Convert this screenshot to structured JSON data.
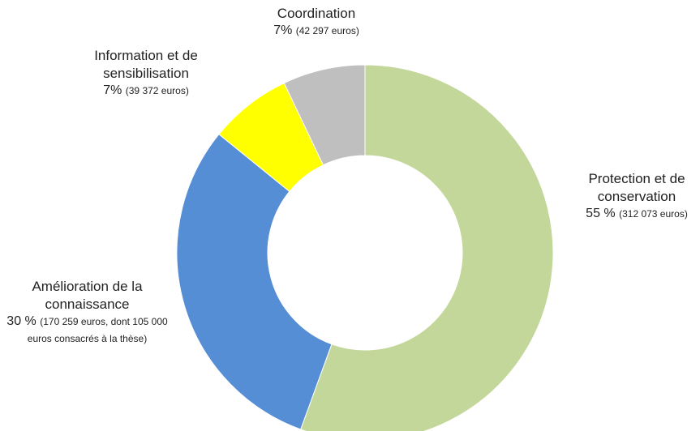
{
  "chart_data": {
    "type": "donut",
    "categories": [
      "Protection et de conservation",
      "Amélioration de la connaissance",
      "Information et de sensibilisation",
      "Coordination"
    ],
    "values": [
      55,
      30,
      7,
      7
    ],
    "value_labels": [
      "55 %",
      "30 %",
      "7%",
      "7%"
    ],
    "details": [
      "(312 073 euros)",
      "(170 259 euros, dont 105 000 euros consacrés à la thèse)",
      "(39 372 euros)",
      "(42 297 euros)"
    ],
    "colors": [
      "#c4d79b",
      "#558ed5",
      "#ffff00",
      "#bfbfbf"
    ]
  }
}
